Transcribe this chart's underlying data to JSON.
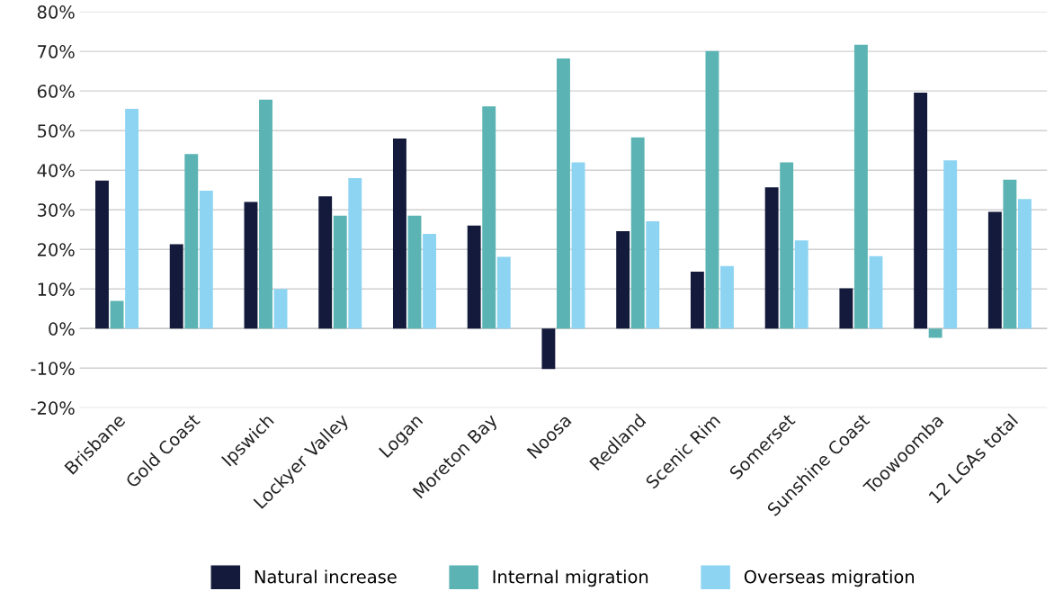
{
  "chart_data": {
    "type": "bar",
    "categories": [
      "Brisbane",
      "Gold Coast",
      "Ipswich",
      "Lockyer Valley",
      "Logan",
      "Moreton Bay",
      "Noosa",
      "Redland",
      "Scenic Rim",
      "Somerset",
      "Sunshine Coast",
      "Toowoomba",
      "12 LGAs total"
    ],
    "series": [
      {
        "name": "Natural increase",
        "color": "#131a3b",
        "values": [
          37.4,
          21.3,
          32.0,
          33.4,
          48.0,
          26.0,
          -10.2,
          24.6,
          14.4,
          35.7,
          10.2,
          59.6,
          29.5
        ]
      },
      {
        "name": "Internal migration",
        "color": "#5bb3b3",
        "values": [
          7.0,
          44.1,
          57.8,
          28.5,
          28.5,
          56.1,
          68.2,
          48.3,
          70.1,
          42.0,
          71.7,
          -2.3,
          37.6
        ]
      },
      {
        "name": "Overseas migration",
        "color": "#8dd4f2",
        "values": [
          55.5,
          34.8,
          10.0,
          38.0,
          23.9,
          18.1,
          42.0,
          27.1,
          15.8,
          22.3,
          18.3,
          42.5,
          32.7
        ]
      }
    ],
    "ylim": [
      -20,
      80
    ],
    "yticks": [
      {
        "value": -20,
        "label": "-20%"
      },
      {
        "value": -10,
        "label": "-10%"
      },
      {
        "value": 0,
        "label": "0%"
      },
      {
        "value": 10,
        "label": "10%"
      },
      {
        "value": 20,
        "label": "20%"
      },
      {
        "value": 30,
        "label": "30%"
      },
      {
        "value": 40,
        "label": "40%"
      },
      {
        "value": 50,
        "label": "50%"
      },
      {
        "value": 60,
        "label": "60%"
      },
      {
        "value": 70,
        "label": "70%"
      },
      {
        "value": 80,
        "label": "80%"
      }
    ],
    "grid": "y",
    "legend": "bottom"
  }
}
